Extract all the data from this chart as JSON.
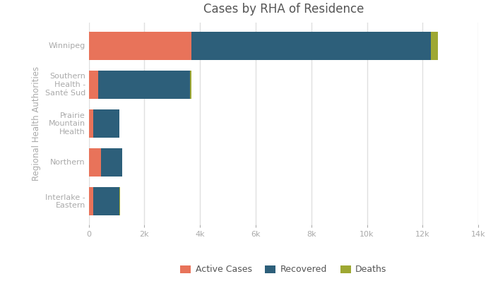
{
  "title": "Cases by RHA of Residence",
  "ylabel": "Regional Health Authorities",
  "categories": [
    "Interlake -\nEastern",
    "Northern",
    "Prairie\nMountain\nHealth",
    "Southern\nHealth -\nSanté Sud",
    "Winnipeg"
  ],
  "active_cases": [
    150,
    450,
    150,
    350,
    3700
  ],
  "recovered": [
    950,
    750,
    950,
    3300,
    8600
  ],
  "deaths": [
    15,
    10,
    10,
    50,
    250
  ],
  "color_active": "#e8735a",
  "color_recovered": "#2d5f7a",
  "color_deaths": "#9ea832",
  "background_color": "#ffffff",
  "plot_bg_color": "#ffffff",
  "grid_color": "#e0e0e0",
  "xlim": [
    0,
    14000
  ],
  "xticks": [
    0,
    2000,
    4000,
    6000,
    8000,
    10000,
    12000,
    14000
  ],
  "xtick_labels": [
    "0",
    "2k",
    "4k",
    "6k",
    "8k",
    "10k",
    "12k",
    "14k"
  ],
  "title_fontsize": 12,
  "axis_label_fontsize": 8.5,
  "tick_fontsize": 8,
  "legend_fontsize": 9,
  "bar_height": 0.72
}
